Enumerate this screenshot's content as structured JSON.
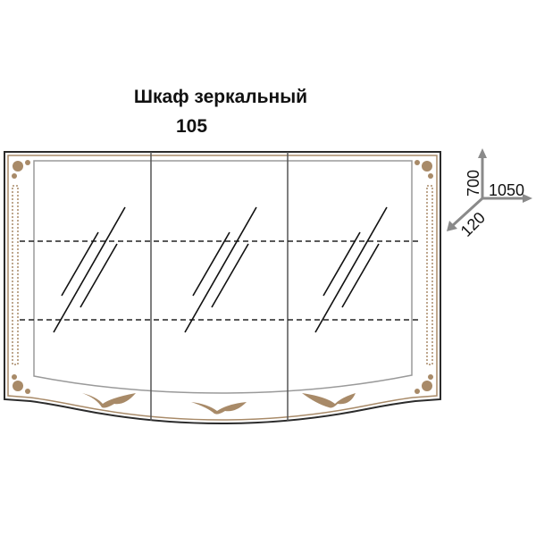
{
  "title": "Шкаф зеркальный",
  "subtitle": "105",
  "dimensions": {
    "height": "700",
    "width": "1050",
    "depth": "120"
  },
  "doors": 3,
  "colors": {
    "outline": "#2b2b2b",
    "panel": "#9a9a9a",
    "ornament": "#a88a68",
    "arrows": "#8a8a8a"
  }
}
